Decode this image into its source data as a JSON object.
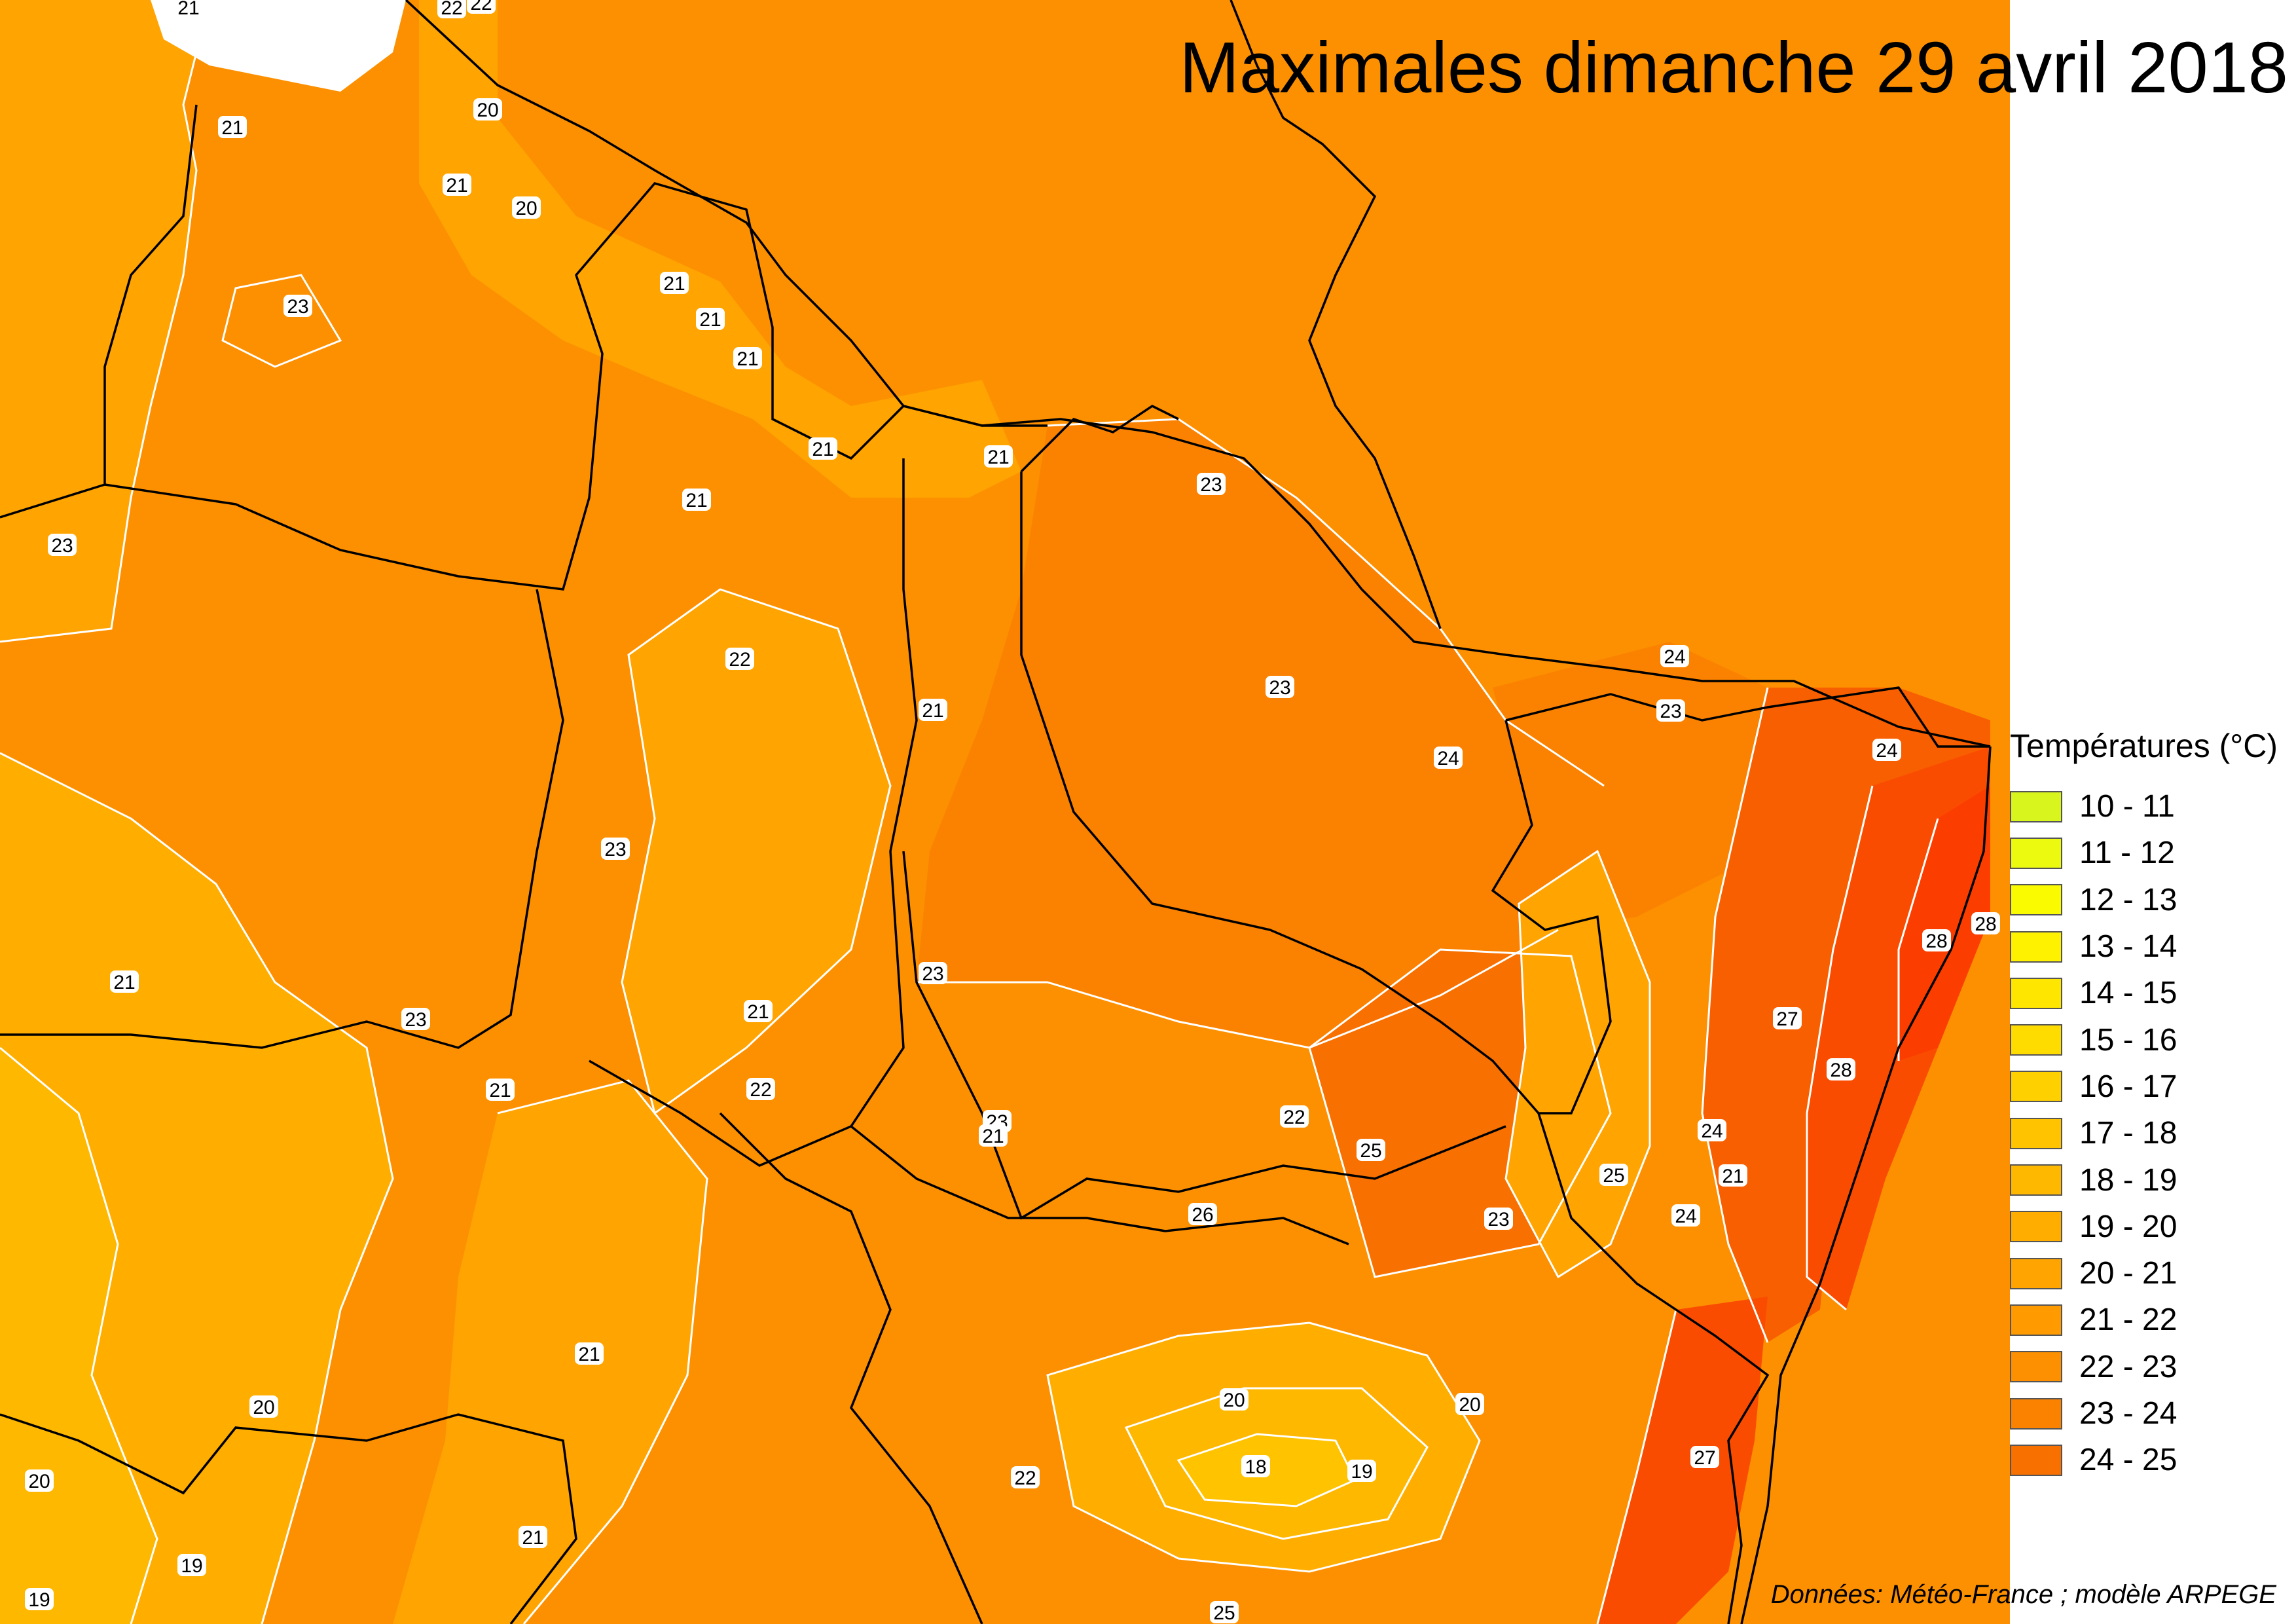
{
  "title": "Maximales dimanche 29 avril 2018",
  "legend": {
    "title": "Températures (°C)",
    "items": [
      {
        "label": "10 - 11",
        "color": "#d8f51e"
      },
      {
        "label": "11 - 12",
        "color": "#ecfa10"
      },
      {
        "label": "12 - 13",
        "color": "#fbfb00"
      },
      {
        "label": "13 - 14",
        "color": "#fff200"
      },
      {
        "label": "14 - 15",
        "color": "#ffe600"
      },
      {
        "label": "15 - 16",
        "color": "#ffdc00"
      },
      {
        "label": "16 - 17",
        "color": "#ffd000"
      },
      {
        "label": "17 - 18",
        "color": "#ffc300"
      },
      {
        "label": "18 - 19",
        "color": "#ffb800"
      },
      {
        "label": "19 - 20",
        "color": "#ffae00"
      },
      {
        "label": "20 - 21",
        "color": "#ffa400"
      },
      {
        "label": "21 - 22",
        "color": "#ff9a00"
      },
      {
        "label": "22 - 23",
        "color": "#fd9000"
      },
      {
        "label": "23 - 24",
        "color": "#fb8200"
      },
      {
        "label": "24 - 25",
        "color": "#f77000"
      }
    ]
  },
  "extra_colors": {
    "t25_27": "#f85f00",
    "t27_28": "#fa4c00",
    "t28": "#fb3d00"
  },
  "isotherm_labels": [
    "21",
    "22",
    "22",
    "20",
    "21",
    "21",
    "20",
    "21",
    "21",
    "21",
    "23",
    "21",
    "21",
    "23",
    "21",
    "23",
    "22",
    "21",
    "23",
    "24",
    "23",
    "24",
    "24",
    "23",
    "23",
    "28",
    "28",
    "21",
    "27",
    "23",
    "21",
    "28",
    "21",
    "22",
    "23",
    "25",
    "22",
    "24",
    "25",
    "21",
    "24",
    "26",
    "23",
    "21",
    "21",
    "20",
    "20",
    "20",
    "18",
    "19",
    "22",
    "27",
    "20",
    "19",
    "21",
    "19",
    "25"
  ],
  "source": "Données: Météo-France ; modèle ARPEGE"
}
